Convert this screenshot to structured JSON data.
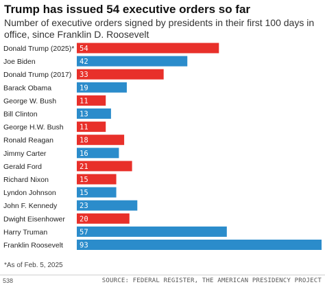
{
  "title": "Trump has issued 54 executive orders so far",
  "subtitle": "Number of executive orders signed by presidents in their first 100 days in office, since Franklin D. Roosevelt",
  "footnote": "*As of Feb. 5, 2025",
  "brand": "538",
  "source": "SOURCE: FEDERAL REGISTER, THE AMERICAN PRESIDENCY PROJECT",
  "colors": {
    "republican": "#e8302a",
    "democrat": "#2b8ccb"
  },
  "chart_data": {
    "type": "bar",
    "orientation": "horizontal",
    "categories": [
      "Donald Trump (2025)*",
      "Joe Biden",
      "Donald Trump (2017)",
      "Barack Obama",
      "George W. Bush",
      "Bill Clinton",
      "George H.W. Bush",
      "Ronald Reagan",
      "Jimmy Carter",
      "Gerald Ford",
      "Richard Nixon",
      "Lyndon Johnson",
      "John F. Kennedy",
      "Dwight Eisenhower",
      "Harry Truman",
      "Franklin Roosevelt"
    ],
    "values": [
      54,
      42,
      33,
      19,
      11,
      13,
      11,
      18,
      16,
      21,
      15,
      15,
      23,
      20,
      57,
      93
    ],
    "party": [
      "R",
      "D",
      "R",
      "D",
      "R",
      "D",
      "R",
      "R",
      "D",
      "R",
      "R",
      "D",
      "D",
      "R",
      "D",
      "D"
    ],
    "xlim": [
      0,
      93
    ],
    "grid": false,
    "data_labels": "inside-left"
  }
}
